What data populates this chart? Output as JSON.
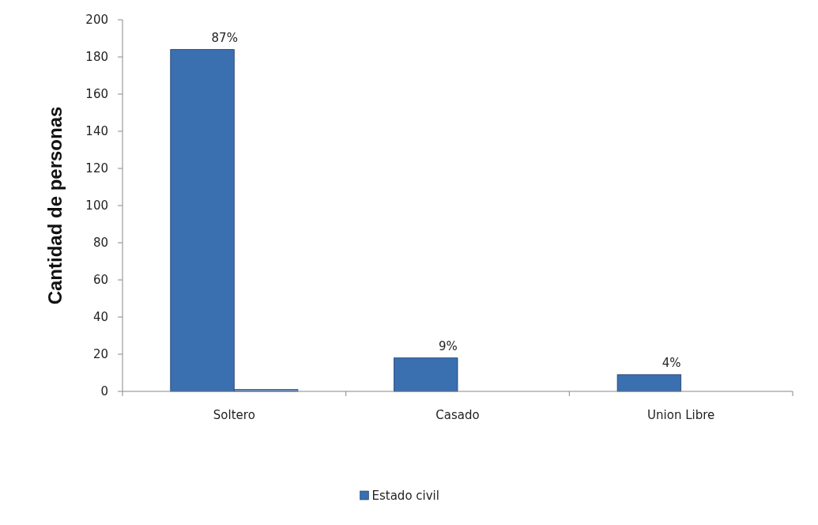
{
  "chart_data": {
    "type": "bar",
    "ylabel": "Cantidad de personas",
    "categories": [
      "Soltero",
      "Casado",
      "Union Libre"
    ],
    "series": [
      {
        "name": "Estado civil",
        "color": "#3a6fb0",
        "values": [
          184,
          18,
          9
        ]
      },
      {
        "color": "#6f93c8",
        "values": [
          1,
          null,
          null
        ]
      }
    ],
    "annotations": [
      {
        "text": "87%",
        "x": "Soltero",
        "y": 184
      },
      {
        "text": "9%",
        "x": "Casado",
        "y": 18
      },
      {
        "text": "4%",
        "x": "Union Libre",
        "y": 9
      }
    ],
    "ylim": [
      0,
      200
    ],
    "yticks": [
      0,
      20,
      40,
      60,
      80,
      100,
      120,
      140,
      160,
      180,
      200
    ],
    "grid": false,
    "legend": "bottom"
  }
}
